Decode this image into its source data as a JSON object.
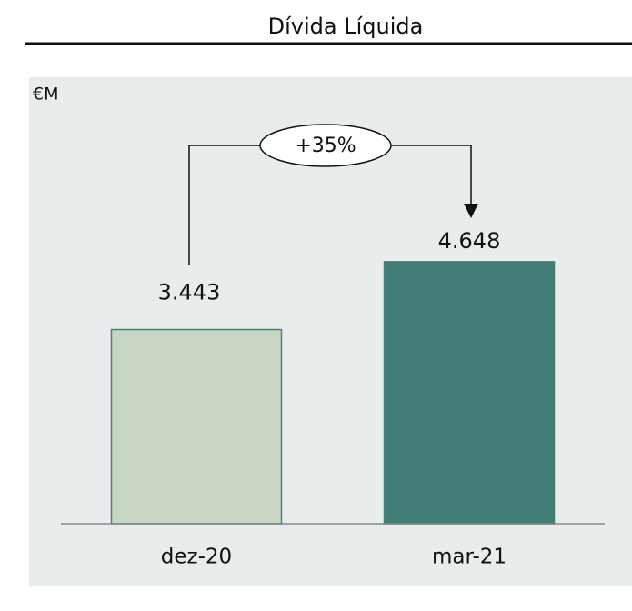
{
  "chart_data": {
    "type": "bar",
    "title": "Dívida Líquida",
    "unit_label": "€M",
    "categories": [
      "dez-20",
      "mar-21"
    ],
    "values": [
      3443,
      4648
    ],
    "value_labels": [
      "3.443",
      "4.648"
    ],
    "colors": [
      "#c9d6c6",
      "#417d75"
    ],
    "annotation": "+35%"
  }
}
